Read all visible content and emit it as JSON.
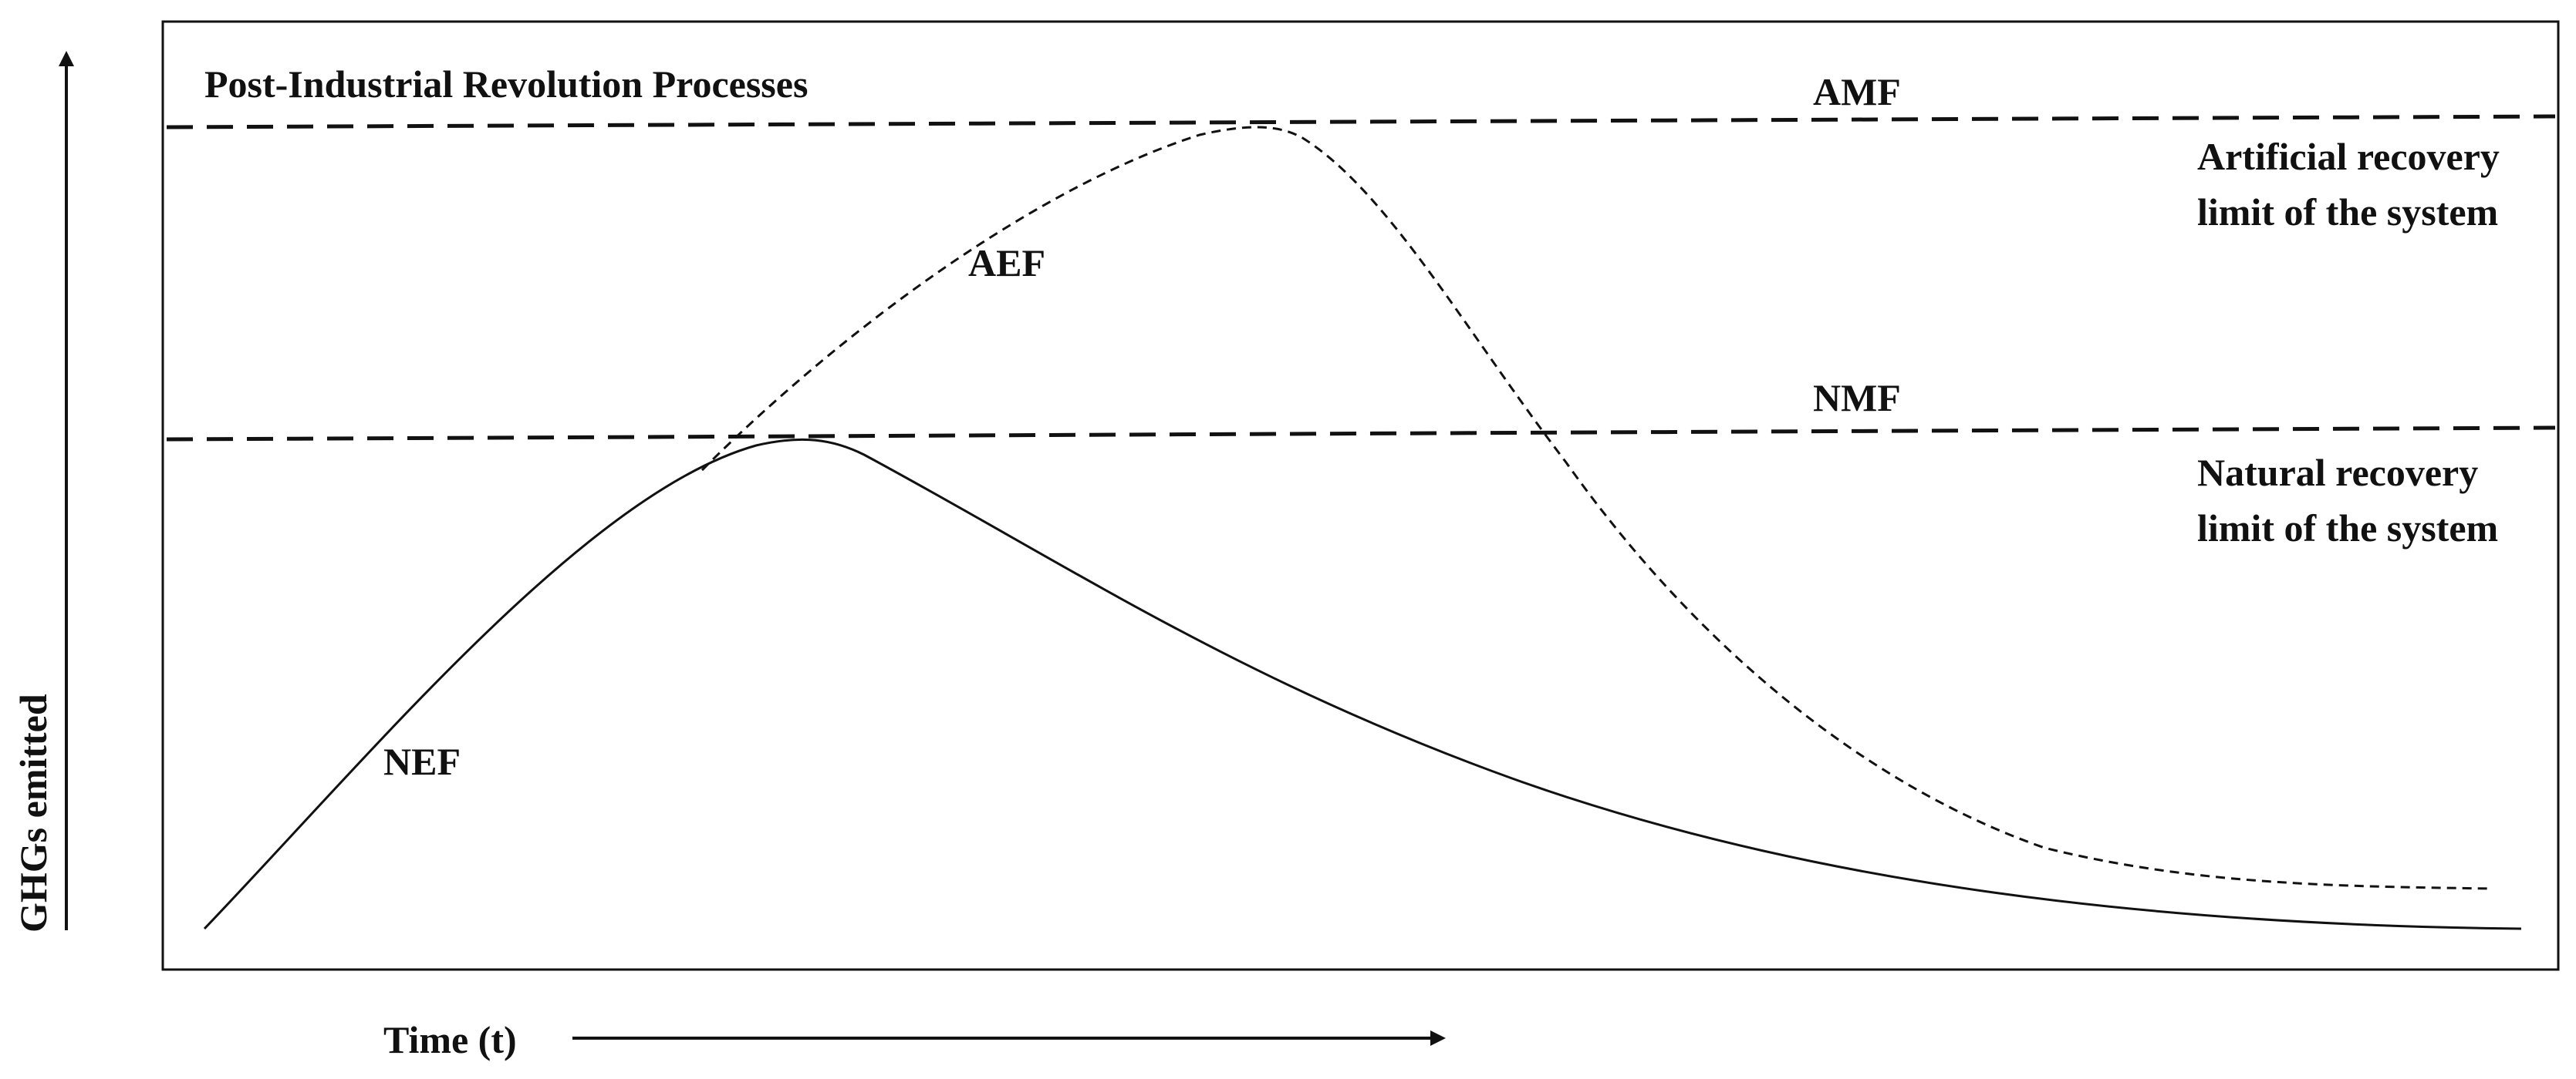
{
  "title": "Post-Industrial Revolution Processes",
  "axes": {
    "y_label": "GHGs emitted",
    "x_label": "Time (t)"
  },
  "thresholds": {
    "amf": {
      "label": "AMF",
      "description_line1": "Artificial recovery",
      "description_line2": "limit of the system"
    },
    "nmf": {
      "label": "NMF",
      "description_line1": "Natural recovery",
      "description_line2": "limit of the system"
    }
  },
  "curves": {
    "nef": {
      "label": "NEF"
    },
    "aef": {
      "label": "AEF"
    }
  },
  "colors": {
    "ink": "#111111",
    "background": "#ffffff"
  }
}
